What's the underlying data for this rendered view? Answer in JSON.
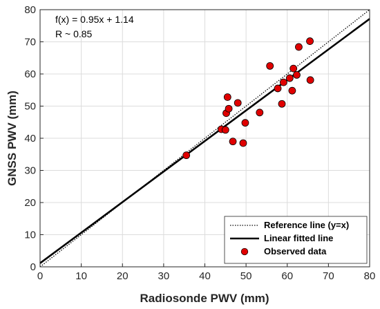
{
  "chart_data": {
    "type": "scatter",
    "title": "",
    "xlabel": "Radiosonde PWV (mm)",
    "ylabel": "GNSS PWV (mm)",
    "xlim": [
      0,
      80
    ],
    "ylim": [
      0,
      80
    ],
    "xticks": [
      "0",
      "10",
      "20",
      "30",
      "40",
      "50",
      "60",
      "70",
      "80"
    ],
    "yticks": [
      "0",
      "10",
      "20",
      "30",
      "40",
      "50",
      "60",
      "70",
      "80"
    ],
    "grid": true,
    "legend_position": "bottom-right",
    "annotations": [
      "f(x) = 0.95x + 1.14",
      "R ~ 0.85"
    ],
    "reference_line": {
      "name": "Reference line (y=x)",
      "slope": 1,
      "intercept": 0,
      "style": "dotted",
      "color": "#000000"
    },
    "fitted_line": {
      "name": "Linear fitted line",
      "slope": 0.95,
      "intercept": 1.14,
      "style": "solid",
      "color": "#000000"
    },
    "series": [
      {
        "name": "Observed data",
        "color": "#e00000",
        "x": [
          35.5,
          44.0,
          45.0,
          45.2,
          45.5,
          45.8,
          46.8,
          48.0,
          49.3,
          49.8,
          53.3,
          55.8,
          57.7,
          58.7,
          59.1,
          60.6,
          61.2,
          61.5,
          62.3,
          62.8,
          65.5,
          65.6
        ],
        "y": [
          34.7,
          42.8,
          42.6,
          47.8,
          52.8,
          49.2,
          39.0,
          51.0,
          38.5,
          44.8,
          48.0,
          62.5,
          55.5,
          50.7,
          57.4,
          58.7,
          54.8,
          61.7,
          59.7,
          68.4,
          70.2,
          58.1
        ]
      }
    ]
  }
}
